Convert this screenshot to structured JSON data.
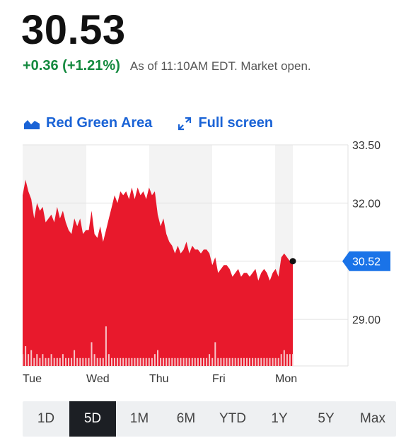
{
  "quote": {
    "price": "30.53",
    "change": "+0.36 (+1.21%)",
    "as_of": "As of 11:10AM EDT. Market open."
  },
  "controls": {
    "chart_type_label": "Red Green Area",
    "chart_type_icon": "area-chart-icon",
    "fullscreen_label": "Full screen",
    "fullscreen_icon": "expand-arrows-icon"
  },
  "colors": {
    "accent": "#1a63d6",
    "positive": "#13893e",
    "area_fill": "#e8192c",
    "current_badge": "#1a73e8"
  },
  "chart_data": {
    "type": "area",
    "title": "",
    "xlabel": "",
    "ylabel": "",
    "ylim": [
      27.8,
      33.5
    ],
    "y_ticks": [
      "33.50",
      "32.00",
      "29.00"
    ],
    "x_labels": [
      "Tue",
      "Wed",
      "Thu",
      "Fri",
      "Mon"
    ],
    "current_value": "30.52",
    "grid": true,
    "series": [
      {
        "values": [
          32.2,
          32.6,
          32.3,
          32.1,
          31.6,
          32.0,
          31.8,
          31.9,
          31.5,
          31.6,
          31.7,
          31.5,
          31.9,
          31.6,
          31.8,
          31.5,
          31.3,
          31.2,
          31.6,
          31.4,
          31.6,
          31.2,
          31.3,
          31.3,
          31.8,
          31.2,
          31.1,
          31.4,
          31.0,
          31.3,
          31.6,
          31.9,
          32.2,
          32.0,
          32.3,
          32.2,
          32.3,
          32.1,
          32.4,
          32.1,
          32.4,
          32.2,
          32.3,
          32.1,
          32.4,
          32.2,
          32.3,
          31.7,
          31.4,
          31.6,
          31.2,
          31.0,
          30.9,
          30.7,
          30.9,
          30.7,
          30.8,
          31.0,
          30.7,
          30.9,
          30.8,
          30.8,
          30.7,
          30.8,
          30.8,
          30.7,
          30.4,
          30.6,
          30.2,
          30.3,
          30.4,
          30.4,
          30.3,
          30.1,
          30.2,
          30.3,
          30.1,
          30.2,
          30.2,
          30.1,
          30.2,
          30.3,
          30.0,
          30.2,
          30.3,
          30.2,
          30.0,
          30.2,
          30.3,
          30.1,
          30.6,
          30.7,
          30.6,
          30.5,
          30.5
        ],
        "volume": [
          0.3,
          0.5,
          0.3,
          0.4,
          0.2,
          0.3,
          0.2,
          0.3,
          0.2,
          0.2,
          0.3,
          0.2,
          0.2,
          0.2,
          0.3,
          0.2,
          0.2,
          0.2,
          0.4,
          0.2,
          0.2,
          0.2,
          0.2,
          0.2,
          0.6,
          0.3,
          0.2,
          0.2,
          0.2,
          1.0,
          0.3,
          0.2,
          0.2,
          0.2,
          0.2,
          0.2,
          0.2,
          0.2,
          0.2,
          0.2,
          0.2,
          0.2,
          0.2,
          0.2,
          0.2,
          0.2,
          0.3,
          0.4,
          0.2,
          0.2,
          0.2,
          0.2,
          0.2,
          0.2,
          0.2,
          0.2,
          0.2,
          0.2,
          0.2,
          0.2,
          0.2,
          0.2,
          0.2,
          0.2,
          0.2,
          0.3,
          0.2,
          0.6,
          0.2,
          0.2,
          0.2,
          0.2,
          0.2,
          0.2,
          0.2,
          0.2,
          0.2,
          0.2,
          0.2,
          0.2,
          0.2,
          0.2,
          0.2,
          0.2,
          0.2,
          0.2,
          0.2,
          0.2,
          0.2,
          0.2,
          0.3,
          0.4,
          0.3,
          0.3,
          0.3
        ]
      }
    ]
  },
  "ranges": {
    "items": [
      "1D",
      "5D",
      "1M",
      "6M",
      "YTD",
      "1Y",
      "5Y",
      "Max"
    ],
    "active": "5D"
  }
}
